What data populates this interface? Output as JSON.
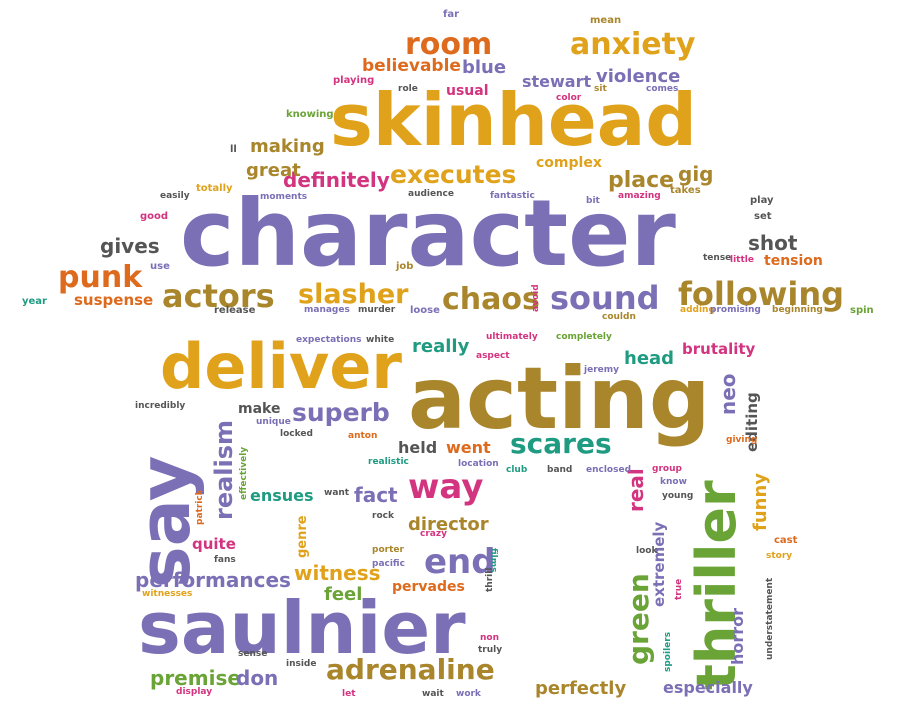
{
  "words": {
    "character": "character",
    "skinhead": "skinhead",
    "acting": "acting",
    "saulnier": "saulnier",
    "deliver": "deliver",
    "say": "say",
    "thriller": "thriller",
    "following": "following",
    "sound": "sound",
    "chaos": "chaos",
    "actors": "actors",
    "slasher": "slasher",
    "punk": "punk",
    "room": "room",
    "anxiety": "anxiety",
    "executes": "executes",
    "definitely": "definitely",
    "adrenaline": "adrenaline",
    "scares": "scares",
    "way": "way",
    "end": "end",
    "superb": "superb",
    "green": "green",
    "premise": "premise",
    "performances": "performances",
    "witness": "witness",
    "director": "director",
    "perfectly": "perfectly",
    "especially": "especially",
    "realism": "realism",
    "violence": "violence",
    "stewart": "stewart",
    "believable": "believable",
    "blue": "blue",
    "usual": "usual",
    "making": "making",
    "great": "great",
    "gives": "gives",
    "suspense": "suspense",
    "place": "place",
    "gig": "gig",
    "complex": "complex",
    "shot": "shot",
    "tension": "tension",
    "really": "really",
    "head": "head",
    "brutality": "brutality",
    "neo": "neo",
    "editing": "editing",
    "held": "held",
    "went": "went",
    "fact": "fact",
    "ensues": "ensues",
    "quite": "quite",
    "don": "don",
    "feel": "feel",
    "pervades": "pervades",
    "real": "real",
    "extremely": "extremely",
    "funny": "funny",
    "horror": "horror",
    "make": "make",
    "far": "far",
    "mean": "mean",
    "playing": "playing",
    "role": "role",
    "knowing": "knowing",
    "ll": "ll",
    "color": "color",
    "sit": "sit",
    "comes": "comes",
    "easily": "easily",
    "totally": "totally",
    "moments": "moments",
    "audience": "audience",
    "fantastic": "fantastic",
    "bit": "bit",
    "amazing": "amazing",
    "takes": "takes",
    "play": "play",
    "good": "good",
    "set": "set",
    "use": "use",
    "job": "job",
    "tense": "tense",
    "little": "little",
    "year": "year",
    "release": "release",
    "manages": "manages",
    "murder": "murder",
    "loose": "loose",
    "avoid": "avoid",
    "couldn": "couldn",
    "adding": "adding",
    "promising": "promising",
    "beginning": "beginning",
    "spin": "spin",
    "expectations": "expectations",
    "white": "white",
    "ultimately": "ultimately",
    "completely": "completely",
    "aspect": "aspect",
    "jeremy": "jeremy",
    "incredibly": "incredibly",
    "unique": "unique",
    "locked": "locked",
    "anton": "anton",
    "realistic": "realistic",
    "location": "location",
    "club": "club",
    "band": "band",
    "enclosed": "enclosed",
    "group": "group",
    "know": "know",
    "young": "young",
    "giving": "giving",
    "effectively": "effectively",
    "patrick": "patrick",
    "want": "want",
    "rock": "rock",
    "genre": "genre",
    "crazy": "crazy",
    "porter": "porter",
    "pacific": "pacific",
    "films": "films",
    "thrill": "thrill",
    "fans": "fans",
    "witnesses": "witnesses",
    "cast": "cast",
    "look": "look",
    "story": "story",
    "true": "true",
    "understatement": "understatement",
    "non": "non",
    "truly": "truly",
    "sense": "sense",
    "inside": "inside",
    "spoilers": "spoilers",
    "display": "display",
    "let": "let",
    "wait": "wait",
    "work": "work"
  }
}
